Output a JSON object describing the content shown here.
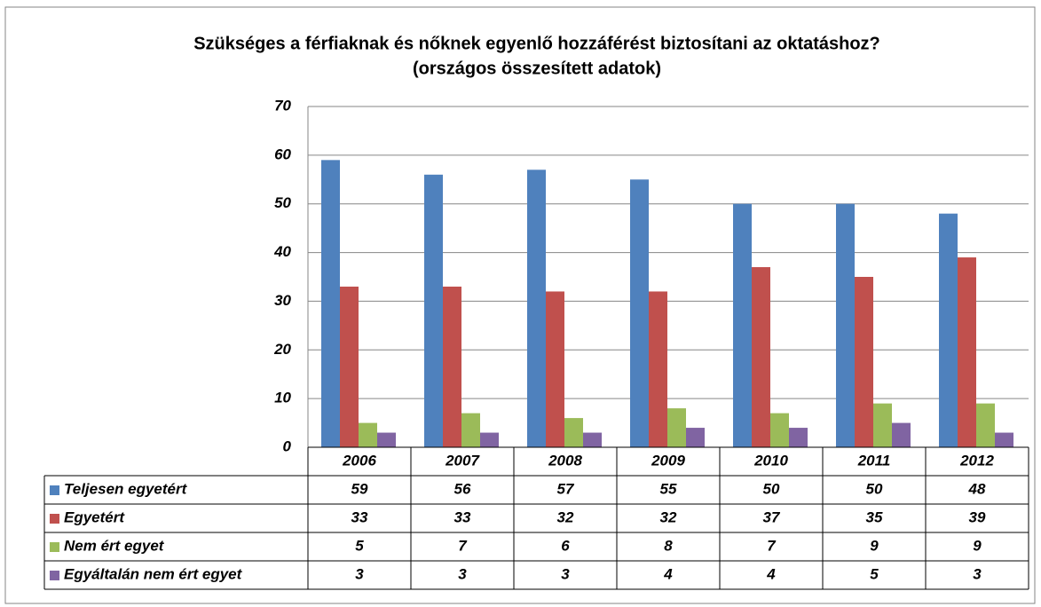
{
  "chart_data": {
    "type": "bar",
    "title": "Szükséges a férfiaknak és nőknek egyenlő hozzáférést biztosítani az oktatáshoz?",
    "subtitle": "(országos összesített adatok)",
    "categories": [
      "2006",
      "2007",
      "2008",
      "2009",
      "2010",
      "2011",
      "2012"
    ],
    "series": [
      {
        "name": "Teljesen egyetért",
        "color": "#4f81bd",
        "values": [
          59,
          56,
          57,
          55,
          50,
          50,
          48
        ]
      },
      {
        "name": "Egyetért",
        "color": "#c0504d",
        "values": [
          33,
          33,
          32,
          32,
          37,
          35,
          39
        ]
      },
      {
        "name": "Nem ért egyet",
        "color": "#9bbb59",
        "values": [
          5,
          7,
          6,
          8,
          7,
          9,
          9
        ]
      },
      {
        "name": "Egyáltalán nem ért egyet",
        "color": "#8064a2",
        "values": [
          3,
          3,
          3,
          4,
          4,
          5,
          3
        ]
      }
    ],
    "ylim": [
      0,
      70
    ],
    "yticks": [
      0,
      10,
      20,
      30,
      40,
      50,
      60,
      70
    ],
    "grid": true
  }
}
